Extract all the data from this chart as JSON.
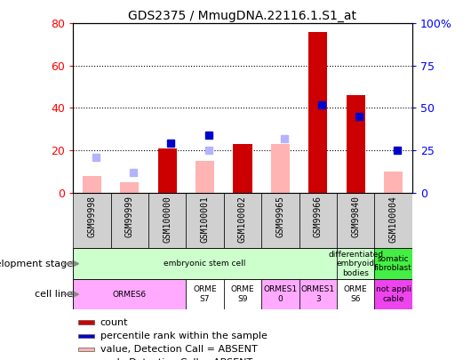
{
  "title": "GDS2375 / MmugDNA.22116.1.S1_at",
  "samples": [
    "GSM99998",
    "GSM99999",
    "GSM100000",
    "GSM100001",
    "GSM100002",
    "GSM99965",
    "GSM99966",
    "GSM99840",
    "GSM100004"
  ],
  "count": [
    null,
    null,
    21,
    null,
    23,
    null,
    76,
    46,
    null
  ],
  "percentile_rank": [
    null,
    null,
    29,
    34,
    null,
    null,
    52,
    45,
    25
  ],
  "value_absent": [
    8,
    5,
    null,
    15,
    null,
    23,
    null,
    null,
    10
  ],
  "rank_absent": [
    21,
    12,
    null,
    25,
    null,
    32,
    null,
    null,
    null
  ],
  "ylim_left": [
    0,
    80
  ],
  "ylim_right": [
    0,
    100
  ],
  "yticks_left": [
    0,
    20,
    40,
    60,
    80
  ],
  "yticks_right": [
    0,
    25,
    50,
    75,
    100
  ],
  "ytick_labels_right": [
    "0",
    "25",
    "50",
    "75",
    "100%"
  ],
  "color_count": "#cc0000",
  "color_rank": "#0000cc",
  "color_value_absent": "#ffb3b3",
  "color_rank_absent": "#b3b3ff",
  "gray_bg": "#d0d0d0",
  "dev_stage_groups": [
    {
      "label": "embryonic stem cell",
      "start": 0,
      "end": 7,
      "color": "#ccffcc"
    },
    {
      "label": "differentiated\nembryoid\nbodies",
      "start": 7,
      "end": 8,
      "color": "#ccffcc"
    },
    {
      "label": "somatic\nfibroblast",
      "start": 8,
      "end": 9,
      "color": "#44ee44"
    }
  ],
  "cell_groups": [
    {
      "label": "ORMES6",
      "start": 0,
      "end": 3,
      "color": "#ffaaff"
    },
    {
      "label": "ORME\nS7",
      "start": 3,
      "end": 4,
      "color": "#ffffff"
    },
    {
      "label": "ORME\nS9",
      "start": 4,
      "end": 5,
      "color": "#ffffff"
    },
    {
      "label": "ORMES1\n0",
      "start": 5,
      "end": 6,
      "color": "#ffaaff"
    },
    {
      "label": "ORMES1\n3",
      "start": 6,
      "end": 7,
      "color": "#ffaaff"
    },
    {
      "label": "ORME\nS6",
      "start": 7,
      "end": 8,
      "color": "#ffffff"
    },
    {
      "label": "not appli\ncable",
      "start": 8,
      "end": 9,
      "color": "#ee44ee"
    }
  ],
  "legend_items": [
    {
      "label": "count",
      "color": "#cc0000"
    },
    {
      "label": "percentile rank within the sample",
      "color": "#0000cc"
    },
    {
      "label": "value, Detection Call = ABSENT",
      "color": "#ffb3b3"
    },
    {
      "label": "rank, Detection Call = ABSENT",
      "color": "#b3b3ff"
    }
  ]
}
